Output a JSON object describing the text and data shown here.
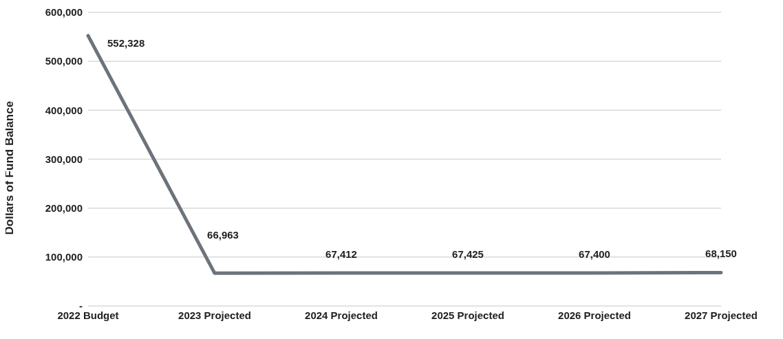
{
  "chart_data": {
    "type": "line",
    "ylabel": "Dollars of Fund Balance",
    "categories": [
      "2022 Budget",
      "2023 Projected",
      "2024 Projected",
      "2025 Projected",
      "2026 Projected",
      "2027 Projected"
    ],
    "series": [
      {
        "color": "#6d737b",
        "values": [
          552328,
          66963,
          67412,
          67425,
          67400,
          68150
        ],
        "value_labels": [
          "552,328",
          "66,963",
          "67,412",
          "67,425",
          "67,400",
          "68,150"
        ]
      }
    ],
    "ylim": [
      0,
      600000
    ],
    "yticks": [
      {
        "value": 0,
        "label": "-"
      },
      {
        "value": 100000,
        "label": "100,000"
      },
      {
        "value": 200000,
        "label": "200,000"
      },
      {
        "value": 300000,
        "label": "300,000"
      },
      {
        "value": 400000,
        "label": "400,000"
      },
      {
        "value": 500000,
        "label": "500,000"
      },
      {
        "value": 600000,
        "label": "600,000"
      }
    ],
    "grid": "y",
    "legend": false,
    "marker": "none",
    "line_style": "solid"
  }
}
